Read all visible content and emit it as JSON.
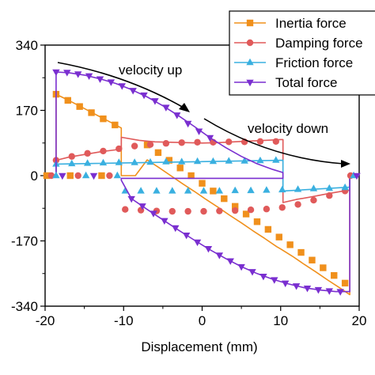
{
  "chart_data": {
    "type": "line",
    "title": "",
    "xlabel": "Displacement (mm)",
    "ylabel": "",
    "xlim": [
      -20,
      20
    ],
    "ylim": [
      -340,
      340
    ],
    "xticks": [
      -20,
      -10,
      0,
      10,
      20
    ],
    "yticks": [
      340,
      170,
      0,
      -170,
      -340
    ],
    "grid": false,
    "legend_position": "top-right",
    "series": [
      {
        "name": "Inertia force",
        "color": "#f0901c",
        "marker": "square",
        "points": [
          [
            -20,
            0
          ],
          [
            -18.6,
            0
          ],
          [
            -18.6,
            212
          ],
          [
            -17.0,
            196
          ],
          [
            -15.5,
            180
          ],
          [
            -14.0,
            164
          ],
          [
            -12.5,
            148
          ],
          [
            -11.0,
            132
          ],
          [
            -10.3,
            124
          ],
          [
            -10.3,
            0
          ],
          [
            -10.0,
            0
          ],
          [
            -8.5,
            0
          ],
          [
            -7.0,
            41
          ],
          [
            -5.5,
            21
          ],
          [
            -4.0,
            0
          ],
          [
            -2.5,
            -21
          ],
          [
            -1.0,
            -41
          ],
          [
            0.5,
            -62
          ],
          [
            2.0,
            -82
          ],
          [
            3.5,
            -103
          ],
          [
            5.0,
            -123
          ],
          [
            6.5,
            -144
          ],
          [
            8.0,
            -164
          ],
          [
            9.5,
            -185
          ],
          [
            10.0,
            -191
          ],
          [
            11.5,
            -210
          ],
          [
            13.0,
            -231
          ],
          [
            14.5,
            -251
          ],
          [
            16.0,
            -272
          ],
          [
            17.5,
            -292
          ],
          [
            18.8,
            -310
          ],
          [
            18.8,
            0
          ],
          [
            20,
            0
          ]
        ],
        "markers": [
          [
            -18.6,
            212
          ],
          [
            -17.1,
            196
          ],
          [
            -15.6,
            180
          ],
          [
            -14.1,
            164
          ],
          [
            -12.6,
            148
          ],
          [
            -11.1,
            132
          ],
          [
            -7.0,
            80
          ],
          [
            -5.6,
            60
          ],
          [
            -4.2,
            40
          ],
          [
            -2.8,
            20
          ],
          [
            -1.4,
            0
          ],
          [
            0,
            -20
          ],
          [
            1.4,
            -40
          ],
          [
            2.8,
            -60
          ],
          [
            4.2,
            -80
          ],
          [
            5.6,
            -100
          ],
          [
            7.0,
            -120
          ],
          [
            8.4,
            -140
          ],
          [
            9.8,
            -160
          ],
          [
            11.2,
            -180
          ],
          [
            12.6,
            -200
          ],
          [
            14.0,
            -220
          ],
          [
            15.4,
            -240
          ],
          [
            16.8,
            -260
          ],
          [
            18.2,
            -280
          ]
        ]
      },
      {
        "name": "Damping force",
        "color": "#e05a5a",
        "marker": "circle",
        "points": [
          [
            -20,
            0
          ],
          [
            -18.6,
            0
          ],
          [
            -18.6,
            40
          ],
          [
            -17.0,
            48
          ],
          [
            -15.0,
            55
          ],
          [
            -13.0,
            62
          ],
          [
            -10.3,
            69
          ],
          [
            -10.3,
            100
          ],
          [
            -8.0,
            92
          ],
          [
            -6.0,
            88
          ],
          [
            -4.0,
            87
          ],
          [
            -2.0,
            86
          ],
          [
            0,
            85
          ],
          [
            2.0,
            86
          ],
          [
            4.0,
            88
          ],
          [
            6.0,
            90
          ],
          [
            8.0,
            92
          ],
          [
            10.0,
            94
          ],
          [
            10.3,
            94
          ],
          [
            10.3,
            -70
          ],
          [
            12.0,
            -62
          ],
          [
            14.0,
            -55
          ],
          [
            16.0,
            -47
          ],
          [
            18.0,
            -40
          ],
          [
            18.8,
            -38
          ],
          [
            18.8,
            0
          ],
          [
            20,
            0
          ]
        ],
        "markers": [
          [
            -18.6,
            40
          ],
          [
            -16.6,
            50
          ],
          [
            -14.6,
            58
          ],
          [
            -12.6,
            64
          ],
          [
            -10.6,
            70
          ],
          [
            -8.6,
            77
          ],
          [
            -6.6,
            81
          ],
          [
            -4.6,
            84
          ],
          [
            -2.6,
            86
          ],
          [
            -0.6,
            87
          ],
          [
            1.4,
            87
          ],
          [
            3.4,
            88
          ],
          [
            5.4,
            88
          ],
          [
            7.4,
            89
          ],
          [
            9.4,
            89
          ],
          [
            -9.8,
            -88
          ],
          [
            -7.8,
            -90
          ],
          [
            -5.8,
            -92
          ],
          [
            -3.8,
            -93
          ],
          [
            -1.8,
            -93
          ],
          [
            0.2,
            -93
          ],
          [
            2.2,
            -92
          ],
          [
            4.2,
            -91
          ],
          [
            6.2,
            -89
          ],
          [
            8.2,
            -87
          ],
          [
            10.2,
            -83
          ],
          [
            12.2,
            -75
          ],
          [
            14.2,
            -64
          ],
          [
            16.2,
            -52
          ],
          [
            18.2,
            -40
          ]
        ]
      },
      {
        "name": "Friction force",
        "color": "#3ab0e0",
        "marker": "triangle-up",
        "points": [
          [
            -20,
            0
          ],
          [
            -18.6,
            0
          ],
          [
            -18.6,
            30
          ],
          [
            10.3,
            40
          ],
          [
            10.3,
            -40
          ],
          [
            18.8,
            -30
          ],
          [
            18.8,
            0
          ],
          [
            20,
            0
          ]
        ],
        "markers": [
          [
            -18.6,
            30
          ],
          [
            -16.6,
            31
          ],
          [
            -14.6,
            32
          ],
          [
            -12.6,
            33
          ],
          [
            -10.6,
            34
          ],
          [
            -8.6,
            34
          ],
          [
            -6.6,
            35
          ],
          [
            -4.6,
            36
          ],
          [
            -2.6,
            36
          ],
          [
            -0.6,
            37
          ],
          [
            1.4,
            37
          ],
          [
            3.4,
            38
          ],
          [
            5.4,
            38
          ],
          [
            7.4,
            39
          ],
          [
            9.4,
            40
          ],
          [
            -9.8,
            -40
          ],
          [
            -7.8,
            -40
          ],
          [
            -5.8,
            -40
          ],
          [
            -3.8,
            -40
          ],
          [
            -1.8,
            -40
          ],
          [
            0.2,
            -40
          ],
          [
            2.2,
            -40
          ],
          [
            4.2,
            -39
          ],
          [
            6.2,
            -39
          ],
          [
            8.2,
            -38
          ],
          [
            10.2,
            -37
          ],
          [
            12.2,
            -36
          ],
          [
            14.2,
            -34
          ],
          [
            16.2,
            -33
          ],
          [
            18.2,
            -31
          ]
        ]
      },
      {
        "name": "Total force",
        "color": "#7a2fd0",
        "marker": "triangle-down",
        "points": [
          [
            -20,
            0
          ],
          [
            -18.6,
            0
          ],
          [
            -18.6,
            270
          ],
          [
            -17.0,
            268
          ],
          [
            -15.0,
            262
          ],
          [
            -13.0,
            252
          ],
          [
            -11.0,
            240
          ],
          [
            -9.0,
            224
          ],
          [
            -7.0,
            205
          ],
          [
            -5.0,
            182
          ],
          [
            -3.0,
            156
          ],
          [
            -1.0,
            128
          ],
          [
            1.0,
            99
          ],
          [
            3.0,
            73
          ],
          [
            5.0,
            50
          ],
          [
            7.0,
            31
          ],
          [
            9.0,
            16
          ],
          [
            10.3,
            8
          ],
          [
            10.3,
            -7
          ],
          [
            -10.3,
            -7
          ],
          [
            -10.3,
            -12
          ],
          [
            -9.0,
            -60
          ],
          [
            -7.0,
            -88
          ],
          [
            -5.0,
            -115
          ],
          [
            -3.0,
            -142
          ],
          [
            -1.0,
            -168
          ],
          [
            1.0,
            -193
          ],
          [
            3.0,
            -216
          ],
          [
            5.0,
            -237
          ],
          [
            7.0,
            -255
          ],
          [
            9.0,
            -270
          ],
          [
            11.0,
            -282
          ],
          [
            13.0,
            -292
          ],
          [
            15.0,
            -298
          ],
          [
            17.0,
            -302
          ],
          [
            18.8,
            -302
          ],
          [
            18.8,
            0
          ],
          [
            20,
            0
          ]
        ],
        "markers": [
          [
            -18.6,
            270
          ],
          [
            -17.2,
            269
          ],
          [
            -15.8,
            265
          ],
          [
            -14.4,
            260
          ],
          [
            -13.0,
            252
          ],
          [
            -11.6,
            244
          ],
          [
            -10.2,
            234
          ],
          [
            -8.8,
            222
          ],
          [
            -7.4,
            210
          ],
          [
            -6.0,
            195
          ],
          [
            -4.6,
            178
          ],
          [
            -3.2,
            158
          ],
          [
            -1.8,
            136
          ],
          [
            -0.4,
            116
          ],
          [
            1.0,
            99
          ],
          [
            -9.0,
            -60
          ],
          [
            -7.6,
            -79
          ],
          [
            -6.2,
            -98
          ],
          [
            -4.8,
            -117
          ],
          [
            -3.4,
            -136
          ],
          [
            -2.0,
            -155
          ],
          [
            -0.6,
            -173
          ],
          [
            0.8,
            -190
          ],
          [
            2.2,
            -207
          ],
          [
            3.6,
            -222
          ],
          [
            5.0,
            -237
          ],
          [
            6.4,
            -250
          ],
          [
            7.8,
            -262
          ],
          [
            9.2,
            -271
          ],
          [
            10.6,
            -280
          ],
          [
            12.0,
            -287
          ],
          [
            13.4,
            -293
          ],
          [
            14.8,
            -297
          ],
          [
            16.2,
            -300
          ],
          [
            17.6,
            -302
          ]
        ]
      }
    ],
    "baseline_markers": [
      -19.8,
      -19.2,
      -18.6,
      -17.8,
      -16.8,
      -15.8,
      -14.8,
      -13.8,
      -12.8,
      -11.8,
      -10.8
    ],
    "annotations": [
      {
        "text": "velocity up",
        "x": -10.2,
        "y": 258
      },
      {
        "text": "velocity down",
        "x": 12.2,
        "y": 120
      }
    ]
  }
}
